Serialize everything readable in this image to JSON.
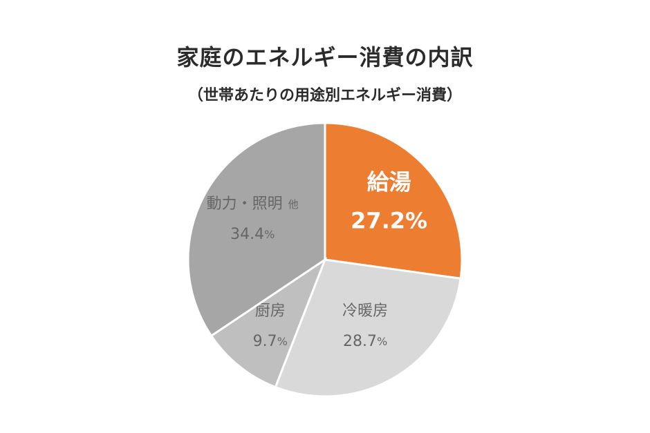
{
  "chart_data": {
    "type": "pie",
    "title": "家庭のエネルギー消費の内訳",
    "subtitle": "（世帯あたりの用途別エネルギー消費）",
    "slices": [
      {
        "label": "給湯",
        "value": 27.2,
        "display": "27.2%",
        "color": "#ED7D31",
        "text_color": "#ffffff",
        "highlight": true
      },
      {
        "label": "冷暖房",
        "value": 28.7,
        "display": "28.7%",
        "color": "#D9D9D9",
        "text_color": "#666666",
        "highlight": false
      },
      {
        "label": "厨房",
        "value": 9.7,
        "display": "9.7%",
        "color": "#BFBFBF",
        "text_color": "#666666",
        "highlight": false
      },
      {
        "label": "動力・照明",
        "label_suffix": "他",
        "value": 34.4,
        "display": "34.4%",
        "color": "#A6A6A6",
        "text_color": "#666666",
        "highlight": false
      }
    ],
    "legend": "none"
  }
}
